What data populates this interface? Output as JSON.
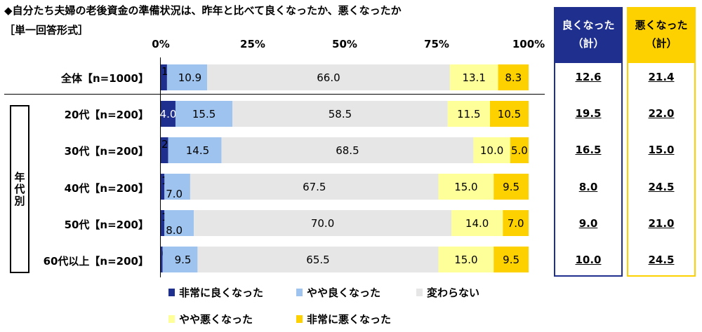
{
  "title": "◆自分たち夫婦の老後資金の準備状況は、昨年と比べて良くなったか、悪くなったか",
  "subtitle": "［単一回答形式］",
  "header_good": [
    "良くなった",
    "（計）"
  ],
  "header_bad": [
    "悪くなった",
    "（計）"
  ],
  "group_label": "年代別",
  "colors": {
    "very_good": "#1f2f8e",
    "somewhat_good": "#9dc3ee",
    "unchanged": "#e6e6e6",
    "somewhat_bad": "#ffff99",
    "very_bad": "#fdd100",
    "good_box": "#1f2f8e",
    "bad_box": "#fdd100"
  },
  "chart_data": {
    "type": "bar",
    "orientation": "horizontal",
    "stacked": true,
    "xlim": [
      0,
      100
    ],
    "x_ticks": [
      "0%",
      "25%",
      "50%",
      "75%",
      "100%"
    ],
    "categories": [
      "全体【n=1000】",
      "20代【n=200】",
      "30代【n=200】",
      "40代【n=200】",
      "50代【n=200】",
      "60代以上【n=200】"
    ],
    "series": [
      {
        "name": "非常に良くなった",
        "values": [
          1.7,
          4.0,
          2.0,
          1.0,
          1.0,
          0.5
        ]
      },
      {
        "name": "やや良くなった",
        "values": [
          10.9,
          15.5,
          14.5,
          7.0,
          8.0,
          9.5
        ]
      },
      {
        "name": "変わらない",
        "values": [
          66.0,
          58.5,
          68.5,
          67.5,
          70.0,
          65.5
        ]
      },
      {
        "name": "やや悪くなった",
        "values": [
          13.1,
          11.5,
          10.0,
          15.0,
          14.0,
          15.0
        ]
      },
      {
        "name": "非常に悪くなった",
        "values": [
          8.3,
          10.5,
          5.0,
          9.5,
          7.0,
          9.5
        ]
      }
    ],
    "totals_good": [
      "12.6",
      "19.5",
      "16.5",
      "8.0",
      "9.0",
      "10.0"
    ],
    "totals_bad": [
      "21.4",
      "22.0",
      "15.0",
      "24.5",
      "21.0",
      "24.5"
    ],
    "legend": [
      "非常に良くなった",
      "やや良くなった",
      "変わらない",
      "やや悪くなった",
      "非常に悪くなった"
    ]
  }
}
